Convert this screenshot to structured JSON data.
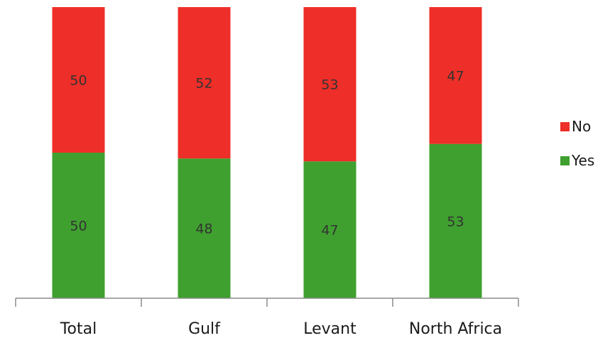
{
  "chart_data": {
    "type": "bar",
    "stacked": true,
    "categories": [
      "Total",
      "Gulf",
      "Levant",
      "North Africa"
    ],
    "series": [
      {
        "name": "Yes",
        "values": [
          50,
          48,
          47,
          53
        ],
        "color": "#3fa02f"
      },
      {
        "name": "No",
        "values": [
          50,
          52,
          53,
          47
        ],
        "color": "#ee2e28"
      }
    ],
    "ylim": [
      0,
      100
    ],
    "grid": false,
    "legend_placement": "right",
    "legend_order": [
      "No",
      "Yes"
    ]
  }
}
